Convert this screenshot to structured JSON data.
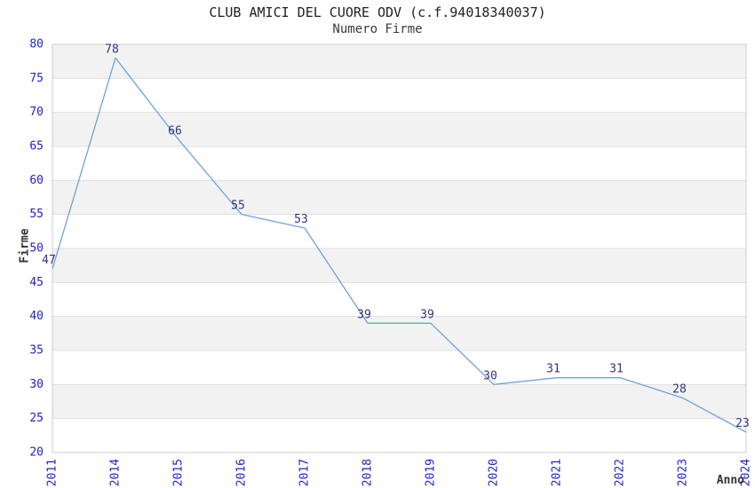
{
  "page": {
    "background": "#ffffff"
  },
  "chart_data": {
    "type": "line",
    "title": "CLUB AMICI DEL CUORE ODV (c.f.94018340037)",
    "subtitle": "Numero Firme",
    "xlabel": "Anno",
    "ylabel": "Firme",
    "categories": [
      "2011",
      "2014",
      "2015",
      "2016",
      "2017",
      "2018",
      "2019",
      "2020",
      "2021",
      "2022",
      "2023",
      "2024"
    ],
    "values": [
      47,
      78,
      66,
      55,
      53,
      39,
      39,
      30,
      31,
      31,
      28,
      23
    ],
    "ylim": [
      20,
      80
    ],
    "yticks": [
      20,
      25,
      30,
      35,
      40,
      45,
      50,
      55,
      60,
      65,
      70,
      75,
      80
    ],
    "grid": "horizontal-stripes",
    "legend": "none",
    "data_labels": true,
    "colors": {
      "line": "#6fa3db",
      "data_label": "#333380",
      "tick_label": "#2222cc",
      "band_fill": "#f2f2f2",
      "grid_line": "#e0e0e0",
      "plot_border": "#cccccc",
      "title": "#222222",
      "subtitle": "#3a3a3a",
      "axis_title": "#333333",
      "background": "#ffffff"
    }
  }
}
